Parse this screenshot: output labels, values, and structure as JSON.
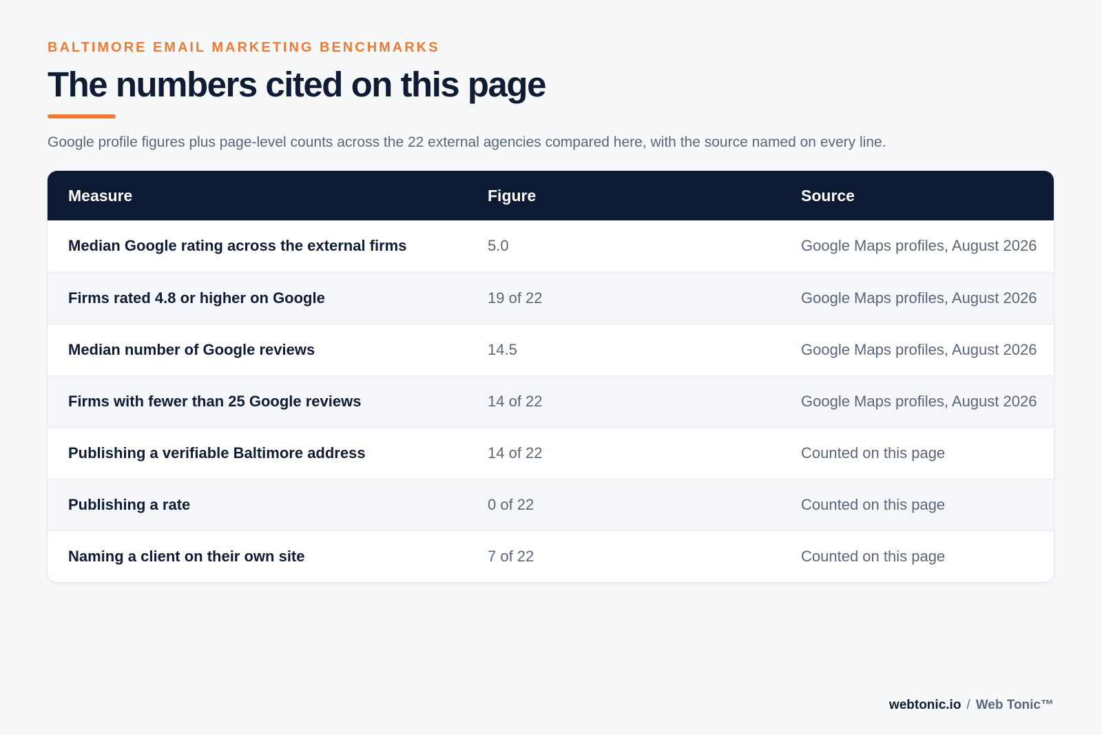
{
  "header": {
    "eyebrow": "BALTIMORE EMAIL MARKETING BENCHMARKS",
    "title": "The numbers cited on this page",
    "subtitle": "Google profile figures plus page-level counts across the 22 external agencies compared here, with the source named on every line."
  },
  "table": {
    "columns": [
      "Measure",
      "Figure",
      "Source"
    ],
    "rows": [
      {
        "measure": "Median Google rating across the external firms",
        "figure": "5.0",
        "source": "Google Maps profiles, August 2026"
      },
      {
        "measure": "Firms rated 4.8 or higher on Google",
        "figure": "19 of 22",
        "source": "Google Maps profiles, August 2026"
      },
      {
        "measure": "Median number of Google reviews",
        "figure": "14.5",
        "source": "Google Maps profiles, August 2026"
      },
      {
        "measure": "Firms with fewer than 25 Google reviews",
        "figure": "14 of 22",
        "source": "Google Maps profiles, August 2026"
      },
      {
        "measure": "Publishing a verifiable Baltimore address",
        "figure": "14 of 22",
        "source": "Counted on this page"
      },
      {
        "measure": "Publishing a rate",
        "figure": "0 of 22",
        "source": "Counted on this page"
      },
      {
        "measure": "Naming a client on their own site",
        "figure": "7 of 22",
        "source": "Counted on this page"
      }
    ]
  },
  "footer": {
    "domain": "webtonic.io",
    "separator": "/",
    "brand": "Web Tonic™"
  },
  "colors": {
    "accent": "#ef7a35",
    "header_bg": "#0c1a33",
    "page_bg": "#f6f8fa"
  }
}
